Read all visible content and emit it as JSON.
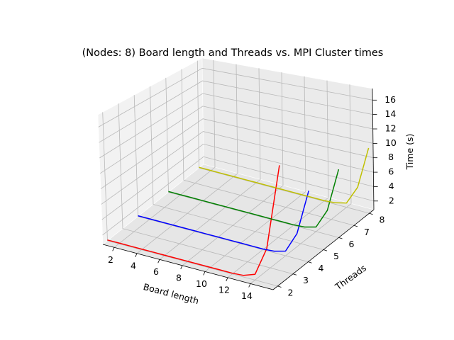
{
  "chart_data": {
    "type": "line3d",
    "title": "(Nodes: 8) Board length and Threads vs. MPI Cluster times",
    "xlabel": "Board length",
    "ylabel": "Threads",
    "zlabel": "Time (s)",
    "x_ticks": [
      2,
      4,
      6,
      8,
      10,
      12,
      14
    ],
    "y_ticks": [
      2,
      3,
      4,
      5,
      6,
      7,
      8
    ],
    "z_ticks": [
      2,
      4,
      6,
      8,
      10,
      12,
      14,
      16
    ],
    "xlim": [
      1,
      16
    ],
    "ylim": [
      1.7,
      8.3
    ],
    "zlim": [
      0.8,
      17.6
    ],
    "grid": true,
    "series": [
      {
        "threads": 2,
        "color": "#ff0000",
        "x": [
          1,
          2,
          3,
          4,
          5,
          6,
          7,
          8,
          9,
          10,
          11,
          12,
          13,
          14,
          15,
          16
        ],
        "y": [
          0.9,
          0.9,
          0.9,
          0.9,
          0.9,
          0.9,
          0.9,
          0.9,
          0.9,
          0.9,
          0.9,
          0.9,
          1.0,
          1.5,
          5.0,
          15.5
        ]
      },
      {
        "threads": 4,
        "color": "#0000ff",
        "x": [
          1,
          2,
          3,
          4,
          5,
          6,
          7,
          8,
          9,
          10,
          11,
          12,
          13,
          14,
          15,
          16
        ],
        "y": [
          0.9,
          0.9,
          0.9,
          0.9,
          0.9,
          0.9,
          0.9,
          0.9,
          0.9,
          0.9,
          0.9,
          0.9,
          1.0,
          1.4,
          4.0,
          9.8
        ]
      },
      {
        "threads": 6,
        "color": "#008000",
        "x": [
          1,
          2,
          3,
          4,
          5,
          6,
          7,
          8,
          9,
          10,
          11,
          12,
          13,
          14,
          15,
          16
        ],
        "y": [
          0.9,
          0.9,
          0.9,
          0.9,
          0.9,
          0.9,
          0.9,
          0.9,
          0.9,
          0.9,
          0.9,
          0.9,
          1.0,
          1.4,
          4.0,
          9.8
        ]
      },
      {
        "threads": 8,
        "color": "#c0c000",
        "x": [
          1,
          2,
          3,
          4,
          5,
          6,
          7,
          8,
          9,
          10,
          11,
          12,
          13,
          14,
          15,
          16
        ],
        "y": [
          0.9,
          0.9,
          0.9,
          0.9,
          0.9,
          0.9,
          0.9,
          0.9,
          0.9,
          0.9,
          0.9,
          0.9,
          1.0,
          1.4,
          4.0,
          9.8
        ]
      }
    ]
  }
}
